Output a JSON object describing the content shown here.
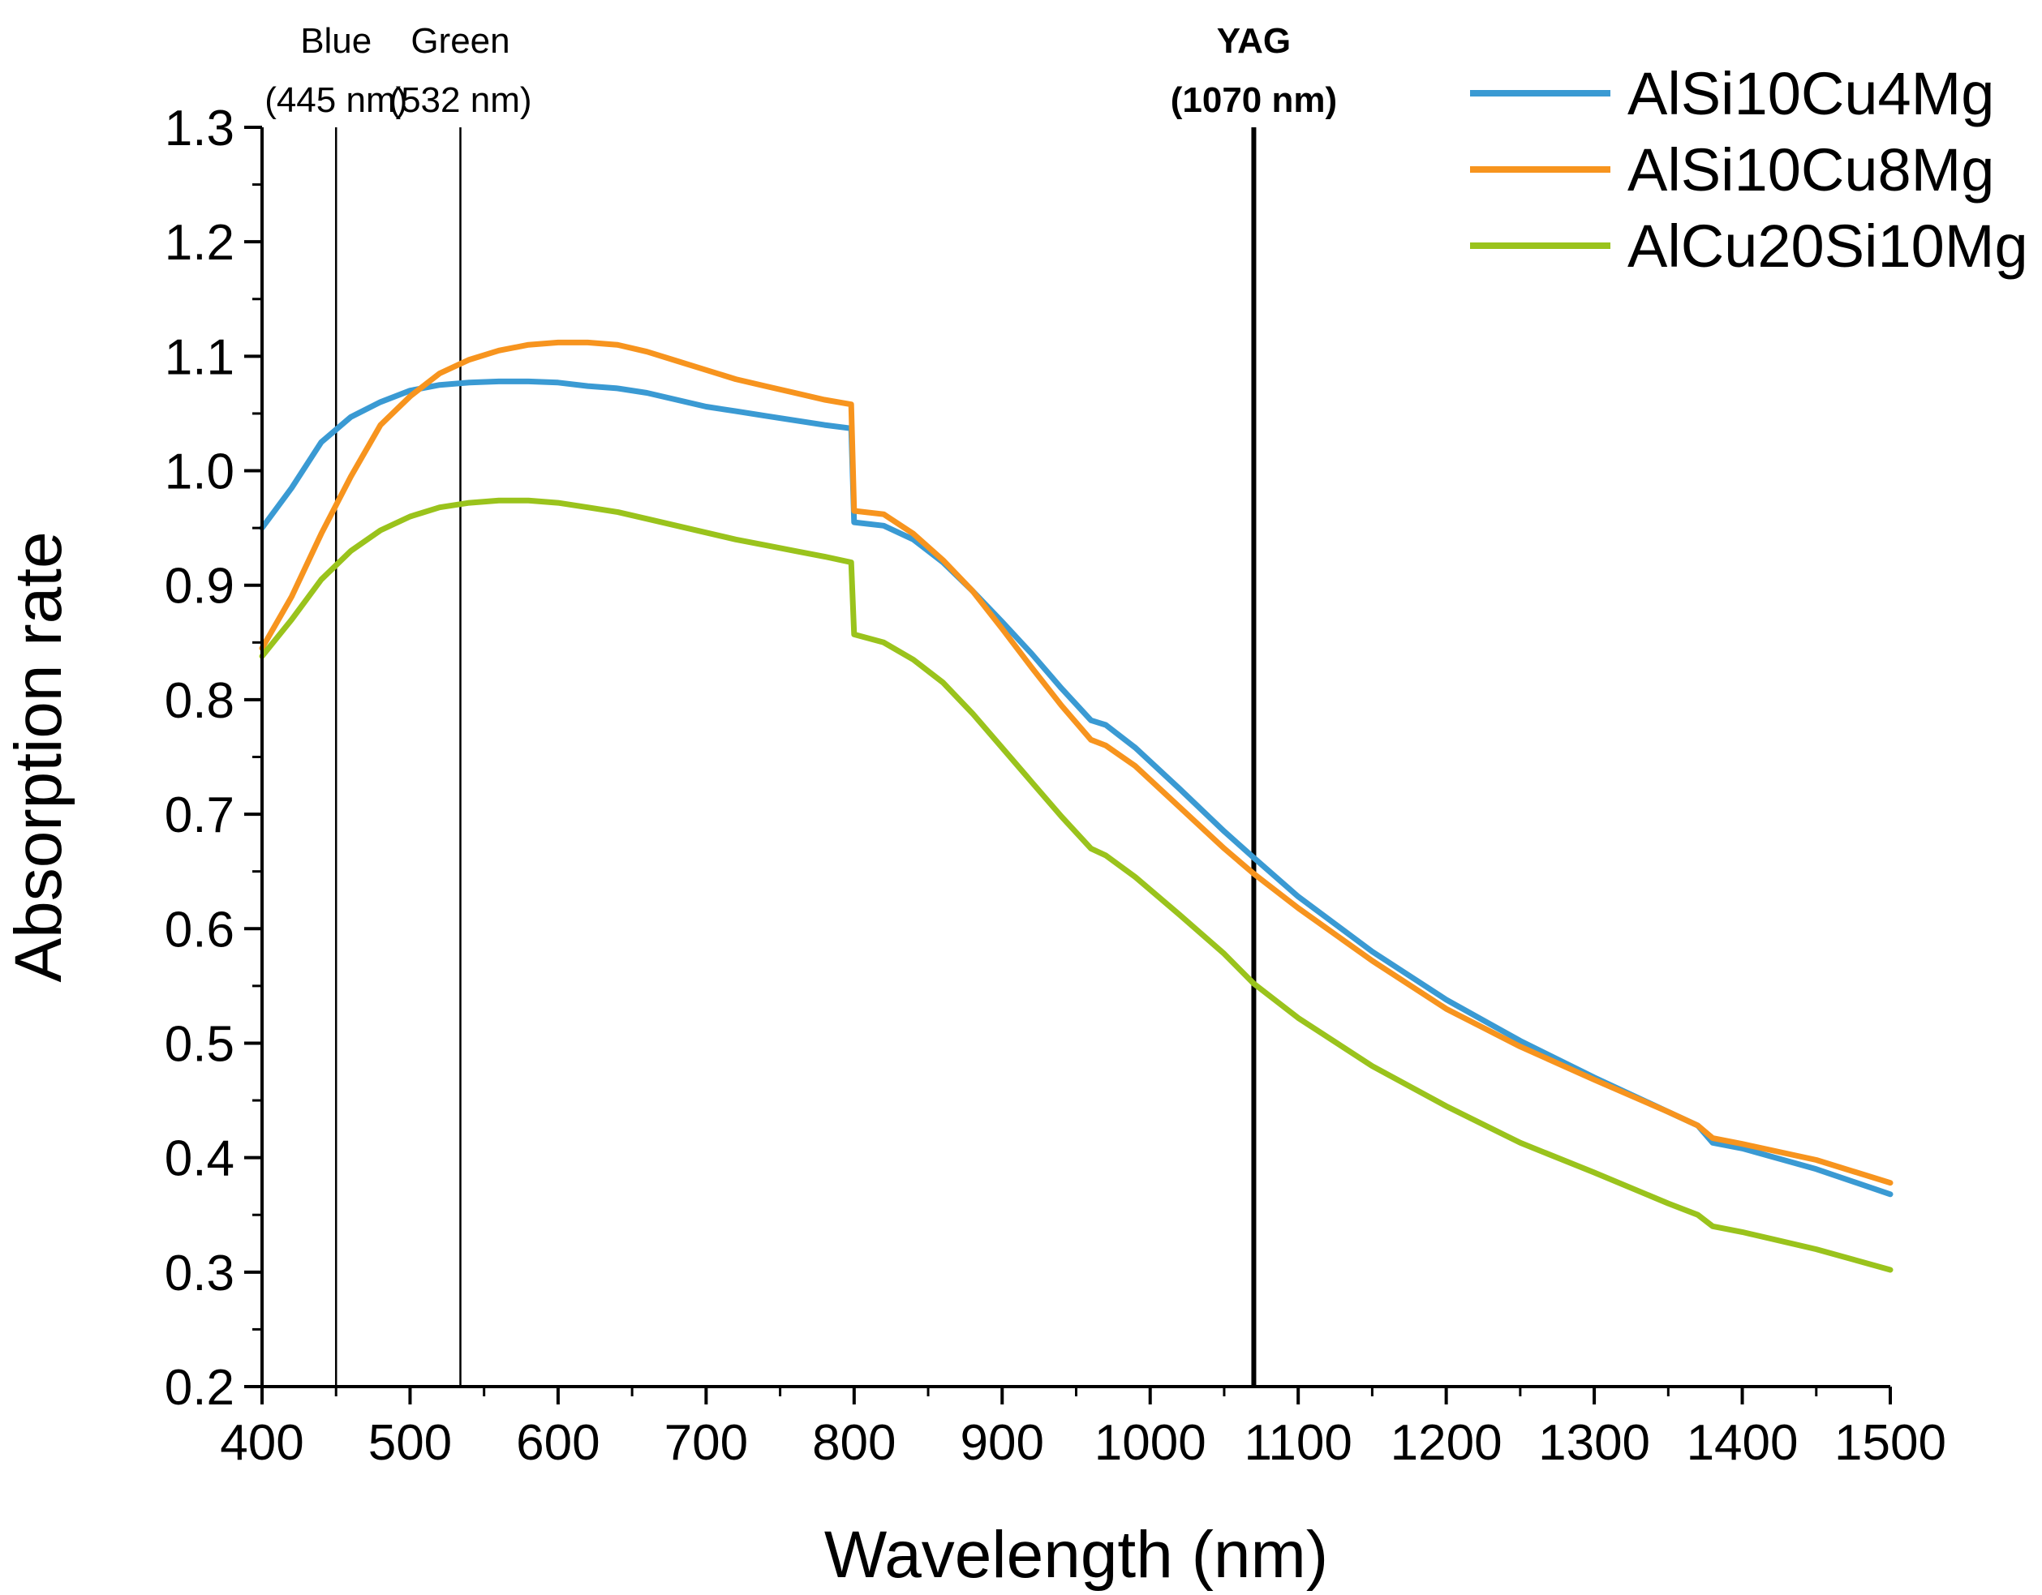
{
  "chart_data": {
    "type": "line",
    "title": "",
    "xlabel": "Wavelength (nm)",
    "ylabel": "Absorption rate",
    "xlim": [
      400,
      1500
    ],
    "ylim": [
      0.2,
      1.3
    ],
    "xticks": [
      400,
      500,
      600,
      700,
      800,
      900,
      1000,
      1100,
      1200,
      1300,
      1400,
      1500
    ],
    "yticks": [
      "0.2",
      "0.3",
      "0.4",
      "0.5",
      "0.6",
      "0.7",
      "0.8",
      "0.9",
      "1.0",
      "1.1",
      "1.2",
      "1.3"
    ],
    "grid": false,
    "legend_position": "top-right",
    "markers": [
      {
        "x": 450,
        "line1": "Blue",
        "line2": "(445 nm)",
        "bold": false
      },
      {
        "x": 534,
        "line1": "Green",
        "line2": "(532 nm)",
        "bold": false
      },
      {
        "x": 1070,
        "line1": "YAG",
        "line2": "(1070 nm)",
        "bold": true
      }
    ],
    "series": [
      {
        "name": "AlSi10Cu4Mg",
        "color": "#3a9ad3",
        "points": [
          [
            400,
            0.95
          ],
          [
            420,
            0.985
          ],
          [
            440,
            1.025
          ],
          [
            460,
            1.047
          ],
          [
            480,
            1.06
          ],
          [
            500,
            1.07
          ],
          [
            520,
            1.075
          ],
          [
            540,
            1.077
          ],
          [
            560,
            1.078
          ],
          [
            580,
            1.078
          ],
          [
            600,
            1.077
          ],
          [
            620,
            1.074
          ],
          [
            640,
            1.072
          ],
          [
            660,
            1.068
          ],
          [
            680,
            1.062
          ],
          [
            700,
            1.056
          ],
          [
            720,
            1.052
          ],
          [
            740,
            1.048
          ],
          [
            760,
            1.044
          ],
          [
            780,
            1.04
          ],
          [
            798,
            1.037
          ],
          [
            800,
            0.955
          ],
          [
            820,
            0.952
          ],
          [
            840,
            0.94
          ],
          [
            860,
            0.92
          ],
          [
            880,
            0.895
          ],
          [
            900,
            0.868
          ],
          [
            920,
            0.84
          ],
          [
            940,
            0.81
          ],
          [
            960,
            0.782
          ],
          [
            970,
            0.778
          ],
          [
            990,
            0.758
          ],
          [
            1020,
            0.722
          ],
          [
            1050,
            0.685
          ],
          [
            1070,
            0.662
          ],
          [
            1100,
            0.628
          ],
          [
            1150,
            0.58
          ],
          [
            1200,
            0.538
          ],
          [
            1250,
            0.502
          ],
          [
            1300,
            0.47
          ],
          [
            1350,
            0.44
          ],
          [
            1370,
            0.428
          ],
          [
            1380,
            0.413
          ],
          [
            1400,
            0.408
          ],
          [
            1450,
            0.39
          ],
          [
            1500,
            0.368
          ]
        ]
      },
      {
        "name": "AlSi10Cu8Mg",
        "color": "#f7941e",
        "points": [
          [
            400,
            0.845
          ],
          [
            420,
            0.89
          ],
          [
            440,
            0.945
          ],
          [
            460,
            0.995
          ],
          [
            480,
            1.04
          ],
          [
            500,
            1.065
          ],
          [
            520,
            1.085
          ],
          [
            540,
            1.097
          ],
          [
            560,
            1.105
          ],
          [
            580,
            1.11
          ],
          [
            600,
            1.112
          ],
          [
            620,
            1.112
          ],
          [
            640,
            1.11
          ],
          [
            660,
            1.104
          ],
          [
            680,
            1.096
          ],
          [
            700,
            1.088
          ],
          [
            720,
            1.08
          ],
          [
            740,
            1.074
          ],
          [
            760,
            1.068
          ],
          [
            780,
            1.062
          ],
          [
            798,
            1.058
          ],
          [
            800,
            0.965
          ],
          [
            820,
            0.962
          ],
          [
            840,
            0.945
          ],
          [
            860,
            0.922
          ],
          [
            880,
            0.895
          ],
          [
            900,
            0.862
          ],
          [
            920,
            0.828
          ],
          [
            940,
            0.795
          ],
          [
            960,
            0.765
          ],
          [
            970,
            0.76
          ],
          [
            990,
            0.742
          ],
          [
            1020,
            0.706
          ],
          [
            1050,
            0.67
          ],
          [
            1070,
            0.648
          ],
          [
            1100,
            0.618
          ],
          [
            1150,
            0.572
          ],
          [
            1200,
            0.53
          ],
          [
            1250,
            0.497
          ],
          [
            1300,
            0.468
          ],
          [
            1350,
            0.44
          ],
          [
            1370,
            0.428
          ],
          [
            1380,
            0.417
          ],
          [
            1400,
            0.412
          ],
          [
            1450,
            0.398
          ],
          [
            1500,
            0.378
          ]
        ]
      },
      {
        "name": "AlCu20Si10Mg",
        "color": "#9ac31c",
        "points": [
          [
            400,
            0.838
          ],
          [
            420,
            0.87
          ],
          [
            440,
            0.905
          ],
          [
            460,
            0.93
          ],
          [
            480,
            0.948
          ],
          [
            500,
            0.96
          ],
          [
            520,
            0.968
          ],
          [
            540,
            0.972
          ],
          [
            560,
            0.974
          ],
          [
            580,
            0.974
          ],
          [
            600,
            0.972
          ],
          [
            620,
            0.968
          ],
          [
            640,
            0.964
          ],
          [
            660,
            0.958
          ],
          [
            680,
            0.952
          ],
          [
            700,
            0.946
          ],
          [
            720,
            0.94
          ],
          [
            740,
            0.935
          ],
          [
            760,
            0.93
          ],
          [
            780,
            0.925
          ],
          [
            798,
            0.92
          ],
          [
            800,
            0.857
          ],
          [
            820,
            0.85
          ],
          [
            840,
            0.835
          ],
          [
            860,
            0.815
          ],
          [
            880,
            0.788
          ],
          [
            900,
            0.758
          ],
          [
            920,
            0.728
          ],
          [
            940,
            0.698
          ],
          [
            960,
            0.67
          ],
          [
            970,
            0.664
          ],
          [
            990,
            0.645
          ],
          [
            1020,
            0.612
          ],
          [
            1050,
            0.578
          ],
          [
            1070,
            0.552
          ],
          [
            1100,
            0.522
          ],
          [
            1150,
            0.48
          ],
          [
            1200,
            0.445
          ],
          [
            1250,
            0.413
          ],
          [
            1300,
            0.387
          ],
          [
            1350,
            0.36
          ],
          [
            1370,
            0.35
          ],
          [
            1380,
            0.34
          ],
          [
            1400,
            0.335
          ],
          [
            1450,
            0.32
          ],
          [
            1500,
            0.302
          ]
        ]
      }
    ]
  }
}
